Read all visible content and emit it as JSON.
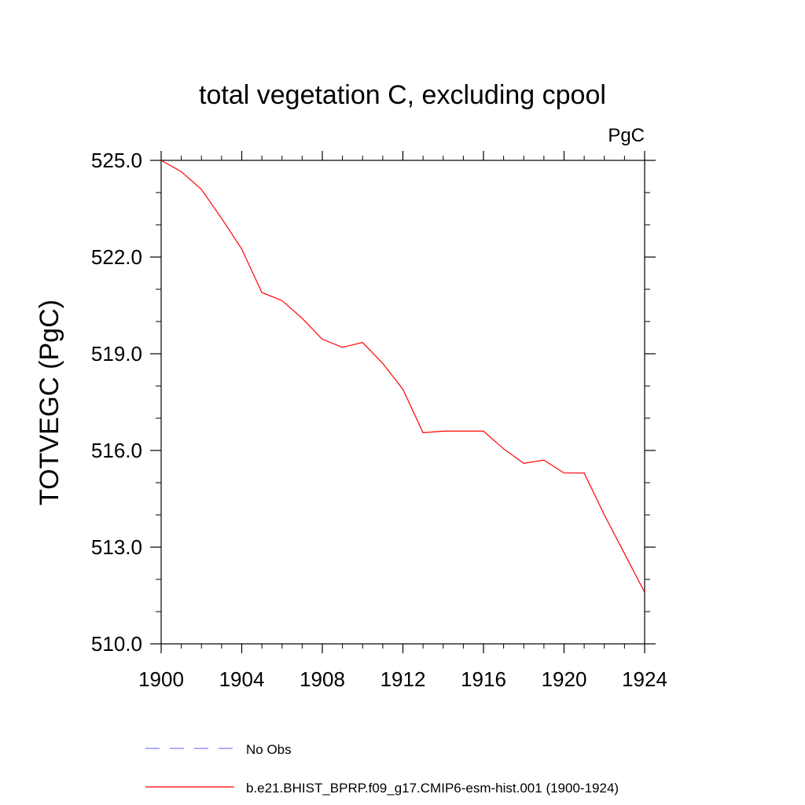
{
  "chart_data": {
    "type": "line",
    "title": "total vegetation C, excluding cpool",
    "units_label": "PgC",
    "ylabel": "TOTVEGC  (PgC)",
    "xlabel": "",
    "xlim": [
      1900,
      1924
    ],
    "ylim": [
      510.0,
      525.0
    ],
    "x_ticks": [
      1900,
      1904,
      1908,
      1912,
      1916,
      1920,
      1924
    ],
    "x_tick_labels": [
      "1900",
      "1904",
      "1908",
      "1912",
      "1916",
      "1920",
      "1924"
    ],
    "y_ticks": [
      510.0,
      513.0,
      516.0,
      519.0,
      522.0,
      525.0
    ],
    "y_tick_labels": [
      "510.0",
      "513.0",
      "516.0",
      "519.0",
      "522.0",
      "525.0"
    ],
    "grid": false,
    "legend_position": "bottom",
    "series": [
      {
        "name": "b.e21.BHIST_BPRP.f09_g17.CMIP6-esm-hist.001 (1900-1924)",
        "color": "#ff0000",
        "style": "solid",
        "x": [
          1900,
          1901,
          1902,
          1903,
          1904,
          1905,
          1906,
          1907,
          1908,
          1909,
          1910,
          1911,
          1912,
          1913,
          1914,
          1915,
          1916,
          1917,
          1918,
          1919,
          1920,
          1921,
          1922,
          1923,
          1924
        ],
        "y": [
          525.0,
          524.65,
          524.1,
          523.2,
          522.25,
          520.9,
          520.65,
          520.1,
          519.45,
          519.2,
          519.35,
          518.7,
          517.9,
          516.55,
          516.6,
          516.6,
          516.6,
          516.05,
          515.6,
          515.7,
          515.3,
          515.3,
          514.0,
          512.8,
          511.6
        ]
      }
    ],
    "legend": [
      {
        "label": "No Obs",
        "color": "#7f7fff",
        "style": "dashed"
      },
      {
        "label": "b.e21.BHIST_BPRP.f09_g17.CMIP6-esm-hist.001 (1900-1924)",
        "color": "#ff0000",
        "style": "solid"
      }
    ]
  }
}
